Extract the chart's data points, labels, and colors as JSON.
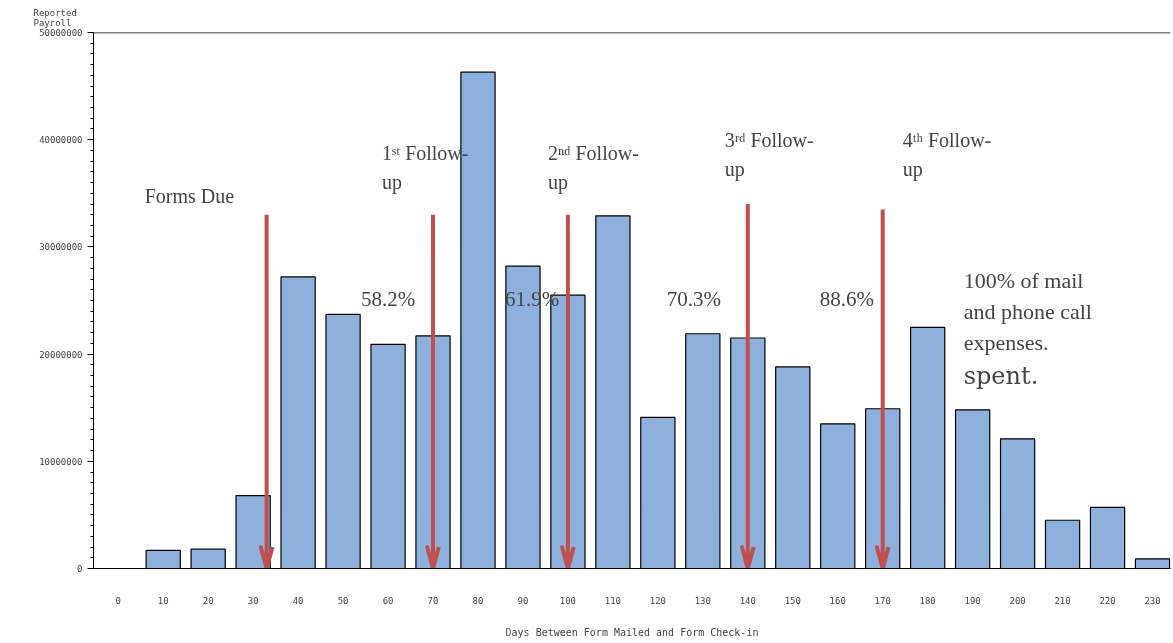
{
  "chart_data": {
    "type": "bar",
    "xlabel": "Days Between Form Mailed and Form Check-in",
    "ylabel": "Reported Payroll",
    "x": [
      10,
      20,
      30,
      40,
      50,
      60,
      70,
      80,
      90,
      100,
      110,
      120,
      130,
      140,
      150,
      160,
      170,
      180,
      190,
      200,
      210,
      220,
      230
    ],
    "values": [
      1700000,
      1800000,
      6800000,
      27200000,
      23700000,
      20900000,
      21700000,
      46300000,
      28200000,
      25500000,
      32900000,
      14100000,
      21900000,
      21500000,
      18800000,
      13500000,
      14900000,
      22500000,
      14800000,
      12100000,
      4500000,
      5700000,
      900000
    ],
    "color": "#8eb0dc",
    "xlim": [
      -5.5,
      234
    ],
    "xticks": [
      0,
      10,
      20,
      30,
      40,
      50,
      60,
      70,
      80,
      90,
      100,
      110,
      120,
      130,
      140,
      150,
      160,
      170,
      180,
      190,
      200,
      210,
      220,
      230
    ],
    "ylim": [
      0,
      50000000
    ],
    "yticks": [
      0,
      10000000,
      20000000,
      30000000,
      40000000,
      50000000
    ],
    "grid": false,
    "ref_lines": [
      {
        "axis": "x",
        "value": 33,
        "label": "Forms Due",
        "color": "#c0504d"
      },
      {
        "axis": "x",
        "value": 70,
        "label": "1ˢᵗ Follow-up",
        "color": "#c0504d"
      },
      {
        "axis": "x",
        "value": 100,
        "label": "2ⁿᵈ Follow-up",
        "color": "#c0504d"
      },
      {
        "axis": "x",
        "value": 140,
        "label": "3ʳᵈ Follow-up",
        "color": "#c0504d"
      },
      {
        "axis": "x",
        "value": 170,
        "label": "4ᵗʰ Follow-up",
        "color": "#c0504d"
      }
    ],
    "annotations": [
      "58.2%",
      "61.9%",
      "70.3%",
      "88.6%",
      "100% of mail and phone call expenses. spent."
    ]
  }
}
